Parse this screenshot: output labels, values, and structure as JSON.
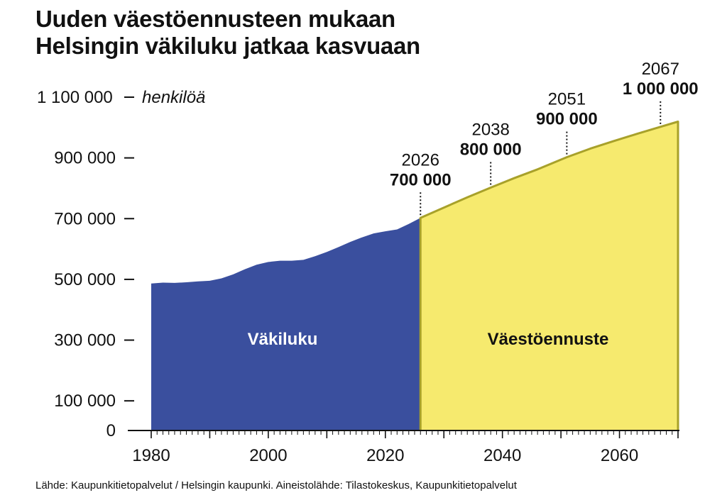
{
  "title": [
    "Uuden väestöennusteen mukaan",
    "Helsingin väkiluku jatkaa kasvuaan"
  ],
  "source": "Lähde: Kaupunkitietopalvelut / Helsingin kaupunki. Aineistolähde: Tilastokeskus, Kaupunkitietopalvelut",
  "chart_data": {
    "type": "area",
    "ylabel": "henkilöä",
    "ylim": [
      0,
      1100000
    ],
    "xlim": [
      1980,
      2070
    ],
    "y_ticks": [
      {
        "value": 0,
        "label": "0"
      },
      {
        "value": 100000,
        "label": "100 000"
      },
      {
        "value": 300000,
        "label": "300 000"
      },
      {
        "value": 500000,
        "label": "500 000"
      },
      {
        "value": 700000,
        "label": "700 000"
      },
      {
        "value": 900000,
        "label": "900 000"
      },
      {
        "value": 1100000,
        "label": "1 100 000"
      }
    ],
    "x_ticks": [
      {
        "value": 1980,
        "label": "1980"
      },
      {
        "value": 2000,
        "label": "2000"
      },
      {
        "value": 2020,
        "label": "2020"
      },
      {
        "value": 2040,
        "label": "2040"
      },
      {
        "value": 2060,
        "label": "2060"
      }
    ],
    "series": [
      {
        "name": "Väkiluku",
        "color": "#3a4f9e",
        "x": [
          1980,
          1982,
          1984,
          1986,
          1988,
          1990,
          1992,
          1994,
          1996,
          1998,
          2000,
          2002,
          2004,
          2006,
          2008,
          2010,
          2012,
          2014,
          2016,
          2018,
          2020,
          2022,
          2024,
          2026
        ],
        "y": [
          484000,
          487000,
          486000,
          488000,
          491000,
          493000,
          501000,
          514000,
          531000,
          546000,
          555000,
          559000,
          559000,
          562000,
          574000,
          588000,
          604000,
          621000,
          636000,
          649000,
          656000,
          662000,
          680000,
          700000
        ]
      },
      {
        "name": "Väestöennuste",
        "color": "#f6ea6e",
        "x": [
          2026,
          2030,
          2034,
          2038,
          2042,
          2046,
          2051,
          2055,
          2059,
          2063,
          2067,
          2070
        ],
        "y": [
          700000,
          734000,
          768000,
          800000,
          831000,
          860000,
          900000,
          928000,
          953000,
          977000,
          1000000,
          1017000
        ]
      }
    ],
    "annotations": [
      {
        "year": 2026,
        "year_label": "2026",
        "value": 700000,
        "value_label": "700 000"
      },
      {
        "year": 2038,
        "year_label": "2038",
        "value": 800000,
        "value_label": "800 000"
      },
      {
        "year": 2051,
        "year_label": "2051",
        "value": 900000,
        "value_label": "900 000"
      },
      {
        "year": 2067,
        "year_label": "2067",
        "value": 1000000,
        "value_label": "1 000 000"
      }
    ]
  }
}
